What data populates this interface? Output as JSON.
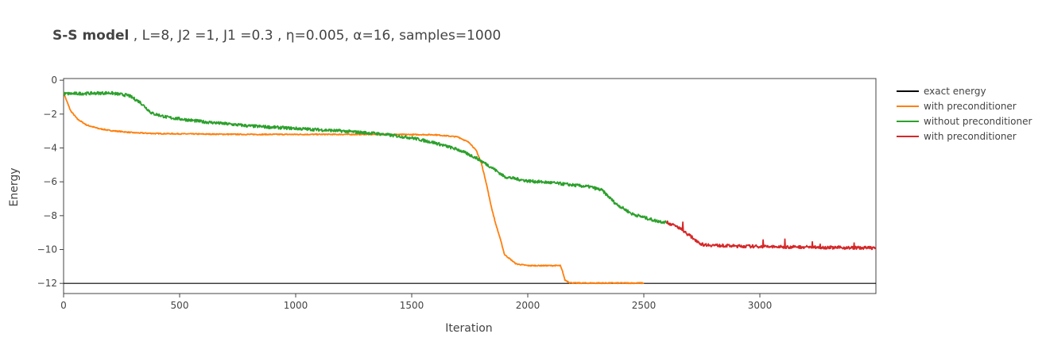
{
  "chart_data": {
    "type": "line",
    "title_bold": "S-S model",
    "title_rest": " , L=8, J2 =1, J1 =0.3 , η=0.005, α=16, samples=1000",
    "xlabel": "Iteration",
    "ylabel": "Energy",
    "xlim": [
      0,
      3500
    ],
    "ylim": [
      -12.6,
      0.1
    ],
    "x_ticks": [
      0,
      500,
      1000,
      1500,
      2000,
      2500,
      3000
    ],
    "y_ticks": [
      0,
      -2,
      -4,
      -6,
      -8,
      -10,
      -12
    ],
    "x_tick_labels": [
      "0",
      "500",
      "1000",
      "1500",
      "2000",
      "2500",
      "3000"
    ],
    "y_tick_labels": [
      "0",
      "−2",
      "−4",
      "−6",
      "−8",
      "−10",
      "−12"
    ],
    "grid": false,
    "legend_position": "right",
    "series": [
      {
        "name": "exact energy",
        "color": "#000000",
        "x": [
          0,
          3500
        ],
        "y": [
          -12,
          -12
        ]
      },
      {
        "name": "with preconditioner",
        "color": "#ff7f0e",
        "x": [
          0,
          10,
          30,
          60,
          100,
          150,
          200,
          300,
          400,
          600,
          800,
          1000,
          1200,
          1400,
          1600,
          1700,
          1750,
          1780,
          1800,
          1820,
          1840,
          1860,
          1880,
          1900,
          1950,
          2000,
          2100,
          2140,
          2150,
          2160,
          2180,
          2200,
          2300,
          2400,
          2500
        ],
        "y": [
          -0.7,
          -1.1,
          -1.8,
          -2.3,
          -2.65,
          -2.85,
          -2.97,
          -3.1,
          -3.15,
          -3.18,
          -3.2,
          -3.2,
          -3.2,
          -3.2,
          -3.22,
          -3.35,
          -3.7,
          -4.2,
          -4.9,
          -6.0,
          -7.3,
          -8.4,
          -9.3,
          -10.3,
          -10.85,
          -10.95,
          -10.95,
          -10.95,
          -11.3,
          -11.8,
          -11.95,
          -11.98,
          -11.98,
          -11.98,
          -11.98
        ]
      },
      {
        "name": "without preconditioner",
        "color": "#2ca02c",
        "x": [
          0,
          100,
          200,
          280,
          330,
          380,
          450,
          600,
          800,
          1000,
          1200,
          1350,
          1500,
          1600,
          1700,
          1780,
          1850,
          1900,
          2000,
          2100,
          2200,
          2270,
          2320,
          2380,
          2450,
          2550,
          2600
        ],
        "y": [
          -0.8,
          -0.78,
          -0.75,
          -0.9,
          -1.3,
          -1.95,
          -2.2,
          -2.45,
          -2.7,
          -2.85,
          -3.0,
          -3.15,
          -3.4,
          -3.7,
          -4.1,
          -4.6,
          -5.2,
          -5.7,
          -5.95,
          -6.05,
          -6.2,
          -6.3,
          -6.5,
          -7.3,
          -7.9,
          -8.3,
          -8.4
        ]
      },
      {
        "name": "with preconditioner",
        "color": "#d62728",
        "x": [
          2600,
          2650,
          2700,
          2750,
          2800,
          2900,
          3000,
          3100,
          3200,
          3300,
          3400,
          3500
        ],
        "y": [
          -8.4,
          -8.7,
          -9.2,
          -9.7,
          -9.75,
          -9.8,
          -9.82,
          -9.85,
          -9.85,
          -9.88,
          -9.9,
          -9.9
        ]
      }
    ]
  }
}
